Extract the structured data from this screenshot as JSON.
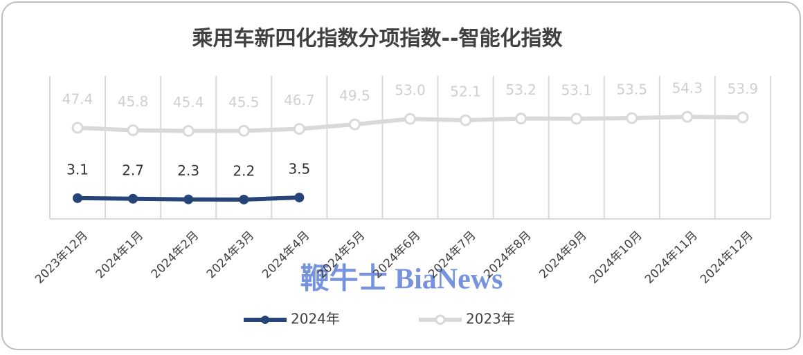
{
  "chart_data": {
    "type": "line",
    "title": "乘用车新四化指数分项指数--智能化指数",
    "watermark": "鞭牛士 BiaNews",
    "categories": [
      "2023年12月",
      "2024年1月",
      "2024年2月",
      "2024年3月",
      "2024年4月",
      "2024年5月",
      "2024年6月",
      "2024年7月",
      "2024年8月",
      "2024年9月",
      "2024年10月",
      "2024年11月",
      "2024年12月"
    ],
    "series": [
      {
        "name": "2024年",
        "color": "#264478",
        "values": [
          3.1,
          2.7,
          2.3,
          2.2,
          3.5,
          null,
          null,
          null,
          null,
          null,
          null,
          null,
          null
        ],
        "value_labels": [
          "3.1",
          "2.7",
          "2.3",
          "2.2",
          "3.5",
          null,
          null,
          null,
          null,
          null,
          null,
          null,
          null
        ]
      },
      {
        "name": "2023年",
        "color": "#d9d9d9",
        "values": [
          47.4,
          45.8,
          45.4,
          45.5,
          46.7,
          49.5,
          53.0,
          52.1,
          53.2,
          53.1,
          53.5,
          54.3,
          53.9
        ],
        "value_labels": [
          "47.4",
          "45.8",
          "45.4",
          "45.5",
          "46.7",
          "49.5",
          "53.0",
          "52.1",
          "53.2",
          "53.1",
          "53.5",
          "54.3",
          "53.9"
        ]
      }
    ],
    "ylim": [
      -10,
      80
    ],
    "grid": true,
    "legend": "bottom"
  }
}
